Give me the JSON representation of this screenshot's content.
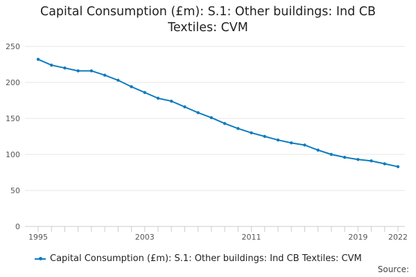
{
  "chart_data": {
    "type": "line",
    "title_lines": [
      "Capital Consumption (£m): S.1: Other buildings: Ind CB",
      "Textiles: CVM"
    ],
    "xlabel": "",
    "ylabel": "",
    "x": [
      1995,
      1996,
      1997,
      1998,
      1999,
      2000,
      2001,
      2002,
      2003,
      2004,
      2005,
      2006,
      2007,
      2008,
      2009,
      2010,
      2011,
      2012,
      2013,
      2014,
      2015,
      2016,
      2017,
      2018,
      2019,
      2020,
      2021,
      2022
    ],
    "xlim": [
      1995,
      2022
    ],
    "xticks": [
      1995,
      2003,
      2011,
      2019,
      2022
    ],
    "ylim": [
      0,
      250
    ],
    "yticks": [
      0,
      50,
      100,
      150,
      200,
      250
    ],
    "grid": "horizontal",
    "series": [
      {
        "name": "Capital Consumption (£m): S.1: Other buildings: Ind CB Textiles: CVM",
        "color": "#0c7bbf",
        "values": [
          232,
          224,
          220,
          216,
          216,
          210,
          203,
          194,
          186,
          178,
          174,
          166,
          158,
          151,
          143,
          136,
          130,
          125,
          120,
          116,
          113,
          106,
          100,
          96,
          93,
          91,
          87,
          83
        ]
      }
    ],
    "legend_position": "bottom-left"
  },
  "source_label": "Source:"
}
